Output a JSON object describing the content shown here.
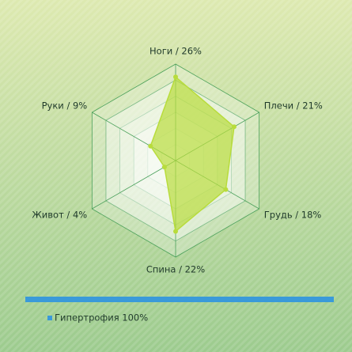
{
  "chart_data": {
    "type": "radar",
    "categories": [
      "Ноги / 26%",
      "Плечи / 21%",
      "Грудь / 18%",
      "Спина / 22%",
      "Живот / 4%",
      "Руки / 9%"
    ],
    "series": [
      {
        "name": "Гипертрофия 100%",
        "color": "#b8dc3c",
        "values": [
          26,
          21,
          18,
          22,
          4,
          9
        ]
      }
    ],
    "rlim": [
      0,
      30
    ],
    "rticks": [
      5,
      10,
      15,
      20,
      25,
      30
    ],
    "grid": true,
    "legend": "bottom-left"
  }
}
